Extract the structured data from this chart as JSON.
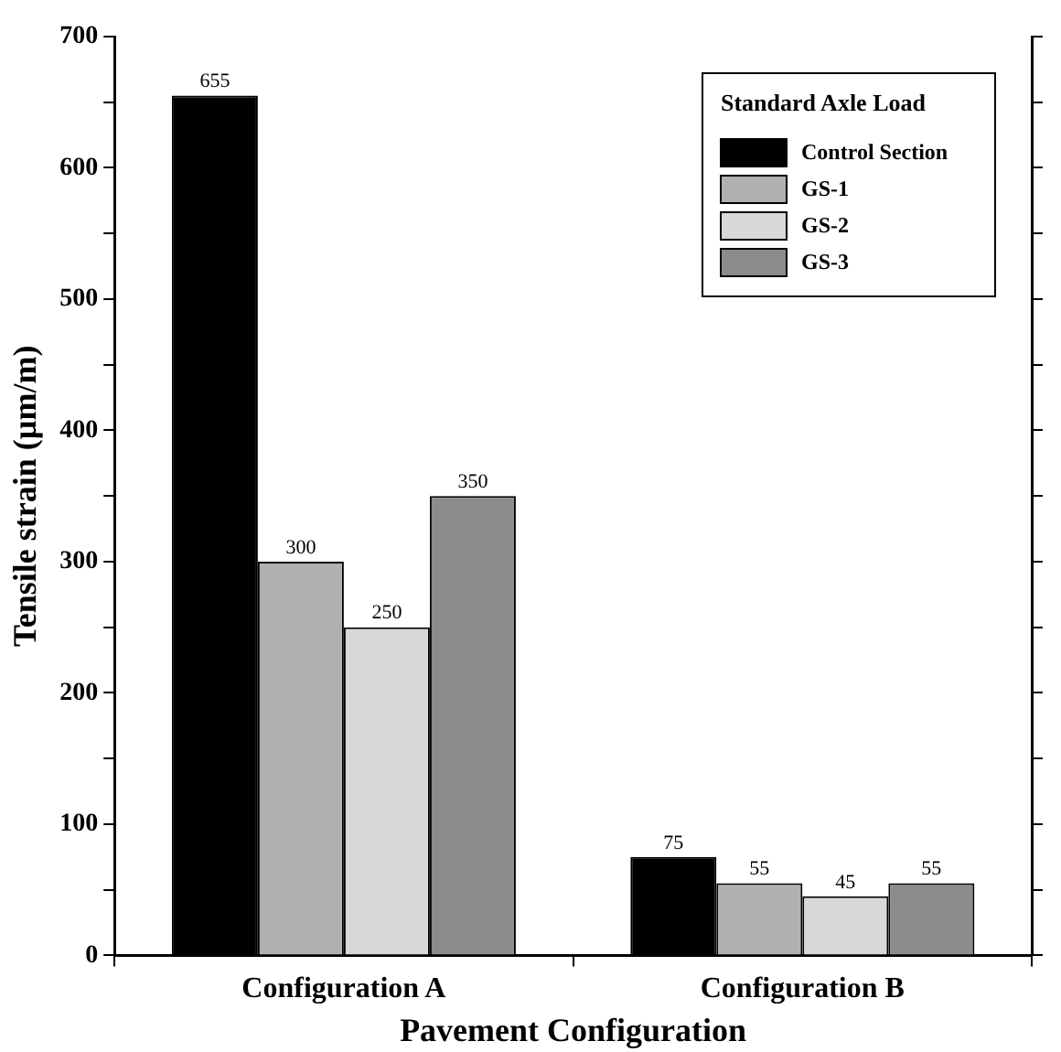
{
  "chart_data": {
    "type": "bar",
    "xlabel": "Pavement Configuration",
    "ylabel": "Tensile strain (µm/m)",
    "legend_title": "Standard Axle Load",
    "categories": [
      "Configuration A",
      "Configuration B"
    ],
    "series": [
      {
        "name": "Control Section",
        "color": "#000000",
        "values": [
          655,
          75
        ]
      },
      {
        "name": "GS-1",
        "color": "#b0b0b0",
        "values": [
          300,
          55
        ]
      },
      {
        "name": "GS-2",
        "color": "#d8d8d8",
        "values": [
          250,
          45
        ]
      },
      {
        "name": "GS-3",
        "color": "#8c8c8c",
        "values": [
          350,
          55
        ]
      }
    ],
    "ylim": [
      0,
      700
    ],
    "yticks": [
      0,
      {
        "value": 50,
        "label": null
      },
      100,
      {
        "value": 150,
        "label": null
      },
      200,
      {
        "value": 250,
        "label": null
      },
      300,
      {
        "value": 350,
        "label": null
      },
      400,
      {
        "value": 450,
        "label": null
      },
      500,
      {
        "value": 550,
        "label": null
      },
      600,
      {
        "value": 650,
        "label": null
      },
      700
    ],
    "grid": false,
    "legend": "top right",
    "data_labels": true
  }
}
